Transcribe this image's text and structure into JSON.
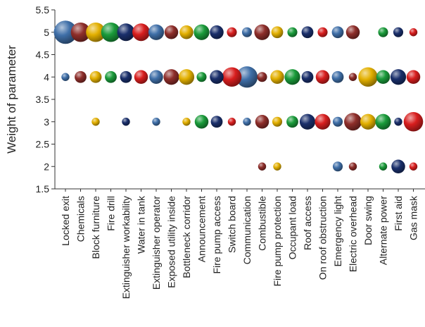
{
  "chart_data": {
    "type": "scatter",
    "title": "",
    "xlabel": "",
    "ylabel": "Weight of parameter",
    "ylim": [
      1.5,
      5.5
    ],
    "y_ticks": [
      "1.5",
      "2",
      "2.5",
      "3",
      "3.5",
      "4",
      "4.5",
      "5",
      "5.5"
    ],
    "grid": false,
    "legend": "none",
    "categories": [
      "Locked exit",
      "Chemicals",
      "Block furniture",
      "Fire drill",
      "Extinguisher workability",
      "Water in tank",
      "Extinguisher operator",
      "Exposed utility inside",
      "Bottleneck corridor",
      "Announcement",
      "Fire pump access",
      "Switch board",
      "Communication",
      "Combustible",
      "Fire pump protection",
      "Occupant load",
      "Roof access",
      "On roof obstruction",
      "Emergency light",
      "Electric overhead",
      "Door swing",
      "Alternate power",
      "First aid",
      "Gas mask"
    ],
    "colors": {
      "blue": "#3f6fa8",
      "red": "#d81e1e",
      "yellow": "#e3b000",
      "green": "#1a9b3a",
      "navy": "#1a2f6b",
      "maroon": "#8e2e2a"
    },
    "points": [
      {
        "x": "Locked exit",
        "y": 5,
        "size": 10,
        "color": "blue"
      },
      {
        "x": "Locked exit",
        "y": 4,
        "size": 2,
        "color": "blue"
      },
      {
        "x": "Chemicals",
        "y": 5,
        "size": 8,
        "color": "maroon"
      },
      {
        "x": "Chemicals",
        "y": 4,
        "size": 4,
        "color": "maroon"
      },
      {
        "x": "Block furniture",
        "y": 5,
        "size": 8,
        "color": "yellow"
      },
      {
        "x": "Block furniture",
        "y": 4,
        "size": 4,
        "color": "yellow"
      },
      {
        "x": "Block furniture",
        "y": 3,
        "size": 2,
        "color": "yellow"
      },
      {
        "x": "Fire drill",
        "y": 5,
        "size": 8,
        "color": "green"
      },
      {
        "x": "Fire drill",
        "y": 4,
        "size": 4,
        "color": "green"
      },
      {
        "x": "Extinguisher workability",
        "y": 5,
        "size": 7,
        "color": "navy"
      },
      {
        "x": "Extinguisher workability",
        "y": 4,
        "size": 4,
        "color": "navy"
      },
      {
        "x": "Extinguisher workability",
        "y": 3,
        "size": 2,
        "color": "navy"
      },
      {
        "x": "Water in tank",
        "y": 5,
        "size": 7,
        "color": "red"
      },
      {
        "x": "Water in tank",
        "y": 4,
        "size": 5,
        "color": "red"
      },
      {
        "x": "Extinguisher operator",
        "y": 5,
        "size": 6,
        "color": "blue"
      },
      {
        "x": "Extinguisher operator",
        "y": 4,
        "size": 5,
        "color": "blue"
      },
      {
        "x": "Extinguisher operator",
        "y": 3,
        "size": 2,
        "color": "blue"
      },
      {
        "x": "Exposed utility inside",
        "y": 5,
        "size": 5,
        "color": "maroon"
      },
      {
        "x": "Exposed utility inside",
        "y": 4,
        "size": 6,
        "color": "maroon"
      },
      {
        "x": "Bottleneck corridor",
        "y": 5,
        "size": 5,
        "color": "yellow"
      },
      {
        "x": "Bottleneck corridor",
        "y": 4,
        "size": 6,
        "color": "yellow"
      },
      {
        "x": "Bottleneck corridor",
        "y": 3,
        "size": 2,
        "color": "yellow"
      },
      {
        "x": "Announcement",
        "y": 5,
        "size": 6,
        "color": "green"
      },
      {
        "x": "Announcement",
        "y": 4,
        "size": 3,
        "color": "green"
      },
      {
        "x": "Announcement",
        "y": 3,
        "size": 5,
        "color": "green"
      },
      {
        "x": "Fire pump access",
        "y": 5,
        "size": 5,
        "color": "navy"
      },
      {
        "x": "Fire pump access",
        "y": 4,
        "size": 5,
        "color": "navy"
      },
      {
        "x": "Fire pump access",
        "y": 3,
        "size": 4,
        "color": "navy"
      },
      {
        "x": "Switch board",
        "y": 5,
        "size": 3,
        "color": "red"
      },
      {
        "x": "Switch board",
        "y": 4,
        "size": 8,
        "color": "red"
      },
      {
        "x": "Switch board",
        "y": 3,
        "size": 2,
        "color": "red"
      },
      {
        "x": "Communication",
        "y": 5,
        "size": 3,
        "color": "blue"
      },
      {
        "x": "Communication",
        "y": 4,
        "size": 9,
        "color": "blue"
      },
      {
        "x": "Communication",
        "y": 3,
        "size": 2,
        "color": "blue"
      },
      {
        "x": "Combustible",
        "y": 5,
        "size": 6,
        "color": "maroon"
      },
      {
        "x": "Combustible",
        "y": 4,
        "size": 3,
        "color": "maroon"
      },
      {
        "x": "Combustible",
        "y": 3,
        "size": 5,
        "color": "maroon"
      },
      {
        "x": "Combustible",
        "y": 2,
        "size": 2,
        "color": "maroon"
      },
      {
        "x": "Fire pump protection",
        "y": 5,
        "size": 4,
        "color": "yellow"
      },
      {
        "x": "Fire pump protection",
        "y": 4,
        "size": 5,
        "color": "yellow"
      },
      {
        "x": "Fire pump protection",
        "y": 3,
        "size": 3,
        "color": "yellow"
      },
      {
        "x": "Fire pump protection",
        "y": 2,
        "size": 2,
        "color": "yellow"
      },
      {
        "x": "Occupant load",
        "y": 5,
        "size": 3,
        "color": "green"
      },
      {
        "x": "Occupant load",
        "y": 4,
        "size": 6,
        "color": "green"
      },
      {
        "x": "Occupant load",
        "y": 3,
        "size": 4,
        "color": "green"
      },
      {
        "x": "Roof access",
        "y": 5,
        "size": 4,
        "color": "navy"
      },
      {
        "x": "Roof access",
        "y": 4,
        "size": 4,
        "color": "navy"
      },
      {
        "x": "Roof access",
        "y": 3,
        "size": 6,
        "color": "navy"
      },
      {
        "x": "On roof obstruction",
        "y": 5,
        "size": 3,
        "color": "red"
      },
      {
        "x": "On roof obstruction",
        "y": 4,
        "size": 5,
        "color": "red"
      },
      {
        "x": "On roof obstruction",
        "y": 3,
        "size": 6,
        "color": "red"
      },
      {
        "x": "Emergency light",
        "y": 5,
        "size": 4,
        "color": "blue"
      },
      {
        "x": "Emergency light",
        "y": 4,
        "size": 4,
        "color": "blue"
      },
      {
        "x": "Emergency light",
        "y": 3,
        "size": 3,
        "color": "blue"
      },
      {
        "x": "Emergency light",
        "y": 2,
        "size": 3,
        "color": "blue"
      },
      {
        "x": "Electric overhead",
        "y": 5,
        "size": 5,
        "color": "maroon"
      },
      {
        "x": "Electric overhead",
        "y": 4,
        "size": 2,
        "color": "maroon"
      },
      {
        "x": "Electric overhead",
        "y": 3,
        "size": 7,
        "color": "maroon"
      },
      {
        "x": "Electric overhead",
        "y": 2,
        "size": 2,
        "color": "maroon"
      },
      {
        "x": "Door swing",
        "y": 4,
        "size": 8,
        "color": "yellow"
      },
      {
        "x": "Door swing",
        "y": 3,
        "size": 6,
        "color": "yellow"
      },
      {
        "x": "Alternate power",
        "y": 5,
        "size": 3,
        "color": "green"
      },
      {
        "x": "Alternate power",
        "y": 4,
        "size": 5,
        "color": "green"
      },
      {
        "x": "Alternate power",
        "y": 3,
        "size": 6,
        "color": "green"
      },
      {
        "x": "Alternate power",
        "y": 2,
        "size": 2,
        "color": "green"
      },
      {
        "x": "First aid",
        "y": 5,
        "size": 3,
        "color": "navy"
      },
      {
        "x": "First aid",
        "y": 4,
        "size": 6,
        "color": "navy"
      },
      {
        "x": "First aid",
        "y": 3,
        "size": 2,
        "color": "navy"
      },
      {
        "x": "First aid",
        "y": 2,
        "size": 5,
        "color": "navy"
      },
      {
        "x": "Gas mask",
        "y": 5,
        "size": 2,
        "color": "red"
      },
      {
        "x": "Gas mask",
        "y": 4,
        "size": 5,
        "color": "red"
      },
      {
        "x": "Gas mask",
        "y": 3,
        "size": 8,
        "color": "red"
      },
      {
        "x": "Gas mask",
        "y": 2,
        "size": 2,
        "color": "red"
      }
    ]
  }
}
